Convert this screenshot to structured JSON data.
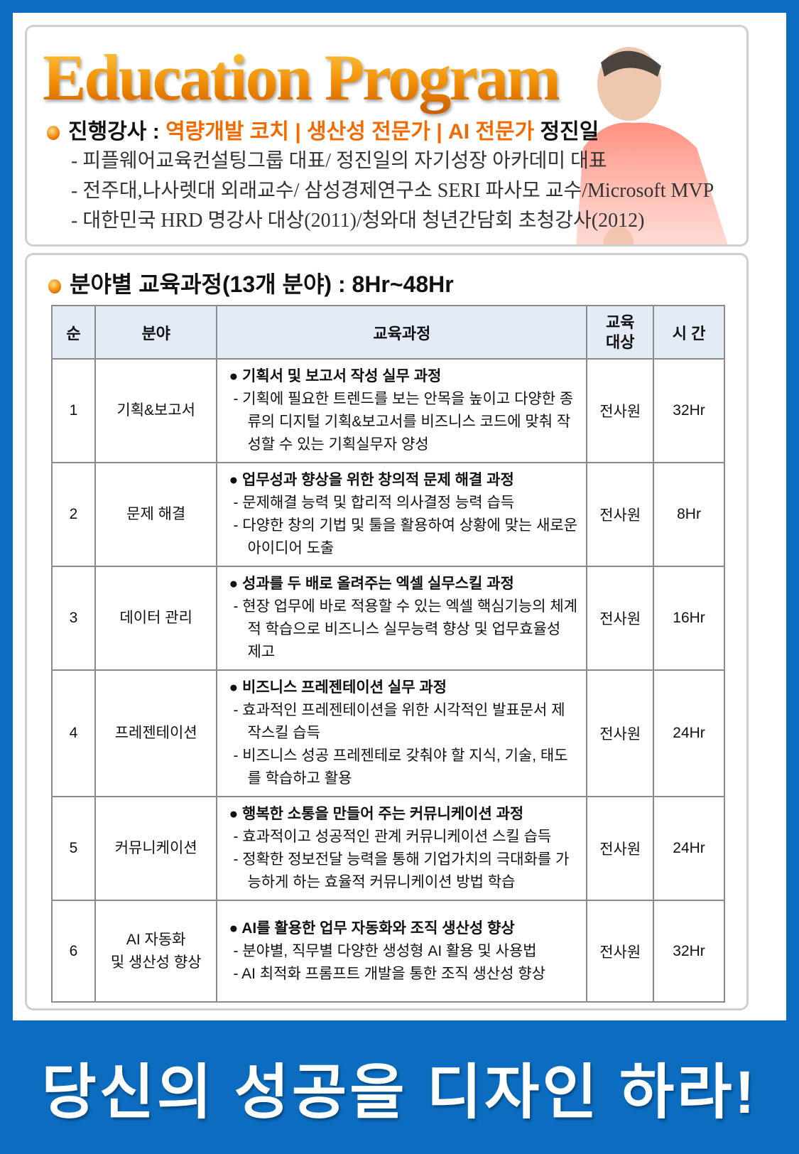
{
  "header": {
    "title": "Education Program",
    "instructor_label": "진행강사 : ",
    "instructor_roles": "역량개발 코치 | 생산성 전문가 | AI 전문가",
    "instructor_name": " 정진일",
    "bio": [
      "- 피플웨어교육컨설팅그룹 대표/ 정진일의 자기성장 아카데미 대표",
      "- 전주대,나사렛대 외래교수/ 삼성경제연구소 SERI 파사모 교수/Microsoft MVP",
      "- 대한민국 HRD 명강사 대상(2011)/청와대 청년간담회 초청강사(2012)"
    ]
  },
  "section": {
    "title": "분야별 교육과정(13개 분야) : 8Hr~48Hr"
  },
  "table": {
    "headers": [
      "순",
      "분야",
      "교육과정",
      "교육\n대상",
      "시 간"
    ],
    "rows": [
      {
        "no": "1",
        "field": "기획&보고서",
        "title": "● 기획서 및 보고서 작성 실무 과정",
        "lines": [
          "- 기획에 필요한 트렌드를 보는 안목을 높이고 다양한 종류의 디지털 기획&보고서를 비즈니스 코드에 맞춰 작성할 수 있는 기획실무자 양성"
        ],
        "target": "전사원",
        "hours": "32Hr"
      },
      {
        "no": "2",
        "field": "문제 해결",
        "title": "● 업무성과 향상을 위한 창의적 문제 해결 과정",
        "lines": [
          "- 문제해결 능력 및 합리적 의사결정 능력 습득",
          "- 다양한 창의 기법 및 툴을 활용하여 상황에 맞는 새로운 아이디어 도출"
        ],
        "target": "전사원",
        "hours": "8Hr"
      },
      {
        "no": "3",
        "field": "데이터 관리",
        "title": "● 성과를 두 배로 올려주는 엑셀 실무스킬 과정",
        "lines": [
          "- 현장 업무에 바로 적용할 수 있는 엑셀 핵심기능의 체계적 학습으로 비즈니스 실무능력 향상 및 업무효율성 제고"
        ],
        "target": "전사원",
        "hours": "16Hr"
      },
      {
        "no": "4",
        "field": "프레젠테이션",
        "title": "● 비즈니스 프레젠테이션 실무 과정",
        "lines": [
          "- 효과적인 프레젠테이션을 위한 시각적인 발표문서 제작스킬 습득",
          "- 비즈니스 성공 프레젠테로 갖춰야 할 지식, 기술, 태도를 학습하고 활용"
        ],
        "target": "전사원",
        "hours": "24Hr"
      },
      {
        "no": "5",
        "field": "커뮤니케이션",
        "title": "● 행복한 소통을 만들어 주는 커뮤니케이션 과정",
        "lines": [
          "- 효과적이고 성공적인 관계 커뮤니케이션 스킬 습득",
          "- 정확한 정보전달 능력을 통해 기업가치의 극대화를 가능하게 하는 효율적 커뮤니케이션 방법 학습"
        ],
        "target": "전사원",
        "hours": "24Hr"
      },
      {
        "no": "6",
        "field": "AI 자동화\n및 생산성 향상",
        "title": "● AI를 활용한 업무 자동화와 조직 생산성 향상",
        "lines": [
          "- 분야별, 직무별 다양한 생성형 AI 활용 및 사용법",
          "- AI 최적화 프롬프트 개발을 통한 조직 생산성 향상"
        ],
        "target": "전사원",
        "hours": "32Hr"
      }
    ]
  },
  "banner": {
    "text": "당신의 성공을 디자인 하라!"
  },
  "colors": {
    "frame": "#0b6cc0",
    "accent": "#f36b00",
    "header_bg": "#e3ebf6"
  }
}
